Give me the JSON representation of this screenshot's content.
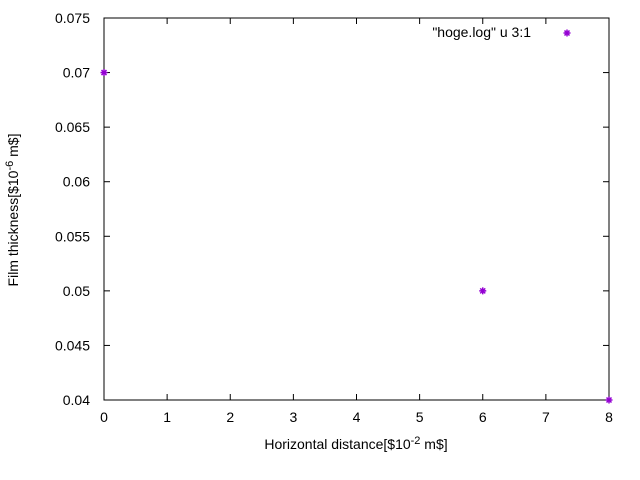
{
  "chart_data": {
    "type": "scatter",
    "title": "",
    "xlabel": "Horizontal distance[$10",
    "xlabel_exp": "-2",
    "xlabel_unit": " m$]",
    "ylabel": "Film thickness[$10",
    "ylabel_exp": "-6",
    "ylabel_unit": " m$]",
    "xlim": [
      0,
      8
    ],
    "ylim": [
      0.04,
      0.075
    ],
    "xticks": [
      "0",
      "1",
      "2",
      "3",
      "4",
      "5",
      "6",
      "7",
      "8"
    ],
    "yticks": [
      "0.04",
      "0.045",
      "0.05",
      "0.055",
      "0.06",
      "0.065",
      "0.07",
      "0.075"
    ],
    "grid": false,
    "legend_position": "top-right",
    "series": [
      {
        "name": "\"hoge.log\" u 3:1",
        "color": "#9400d3",
        "marker": "star",
        "points": [
          {
            "x": 0,
            "y": 0.07
          },
          {
            "x": 6,
            "y": 0.05
          },
          {
            "x": 8,
            "y": 0.04
          }
        ]
      }
    ]
  }
}
